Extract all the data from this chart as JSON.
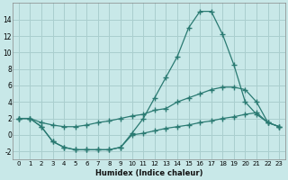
{
  "xlabel": "Humidex (Indice chaleur)",
  "x": [
    0,
    1,
    2,
    3,
    4,
    5,
    6,
    7,
    8,
    9,
    10,
    11,
    12,
    13,
    14,
    15,
    16,
    17,
    18,
    19,
    20,
    21,
    22,
    23
  ],
  "line_spike": [
    2.0,
    2.0,
    1.0,
    -0.8,
    -1.5,
    -1.8,
    -1.8,
    -1.8,
    -1.8,
    -1.5,
    0.2,
    2.0,
    4.5,
    7.0,
    9.5,
    13.0,
    15.0,
    15.0,
    12.2,
    8.5,
    4.0,
    2.5,
    1.5,
    1.0
  ],
  "line_mid": [
    2.0,
    2.0,
    1.5,
    1.2,
    1.0,
    1.0,
    1.2,
    1.5,
    1.7,
    2.0,
    2.3,
    2.5,
    3.0,
    3.2,
    4.0,
    4.5,
    5.0,
    5.5,
    5.8,
    5.8,
    5.5,
    4.0,
    1.5,
    1.0
  ],
  "line_low": [
    2.0,
    2.0,
    1.0,
    -0.8,
    -1.5,
    -1.8,
    -1.8,
    -1.8,
    -1.8,
    -1.5,
    0.0,
    0.2,
    0.5,
    0.8,
    1.0,
    1.2,
    1.5,
    1.7,
    2.0,
    2.2,
    2.5,
    2.7,
    1.5,
    1.0
  ],
  "line_color": "#2a7a72",
  "bg_color": "#c8e8e8",
  "grid_color": "#aacece",
  "ylim": [
    -3,
    16
  ],
  "xlim": [
    -0.5,
    23.5
  ],
  "yticks": [
    -2,
    0,
    2,
    4,
    6,
    8,
    10,
    12,
    14
  ],
  "xticks": [
    0,
    1,
    2,
    3,
    4,
    5,
    6,
    7,
    8,
    9,
    10,
    11,
    12,
    13,
    14,
    15,
    16,
    17,
    18,
    19,
    20,
    21,
    22,
    23
  ],
  "figsize": [
    3.2,
    2.0
  ],
  "dpi": 100
}
